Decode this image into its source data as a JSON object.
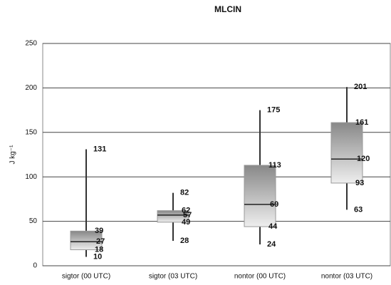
{
  "chart_data": {
    "type": "box",
    "title": "MLCIN",
    "y_label": "J kg⁻¹",
    "categories": [
      "sigtor (00 UTC)",
      "sigtor (03 UTC)",
      "nontor (00 UTC)",
      "nontor (03 UTC)"
    ],
    "min": [
      10,
      28,
      24,
      63
    ],
    "q1": [
      18,
      49,
      44,
      93
    ],
    "median": [
      27,
      57,
      69,
      120
    ],
    "q3": [
      39,
      62,
      113,
      161
    ],
    "max": [
      131,
      82,
      175,
      201
    ],
    "ylim": [
      0,
      250
    ],
    "yticks": [
      0,
      50,
      100,
      150,
      200,
      250
    ],
    "grid": true,
    "color": "#999999"
  }
}
